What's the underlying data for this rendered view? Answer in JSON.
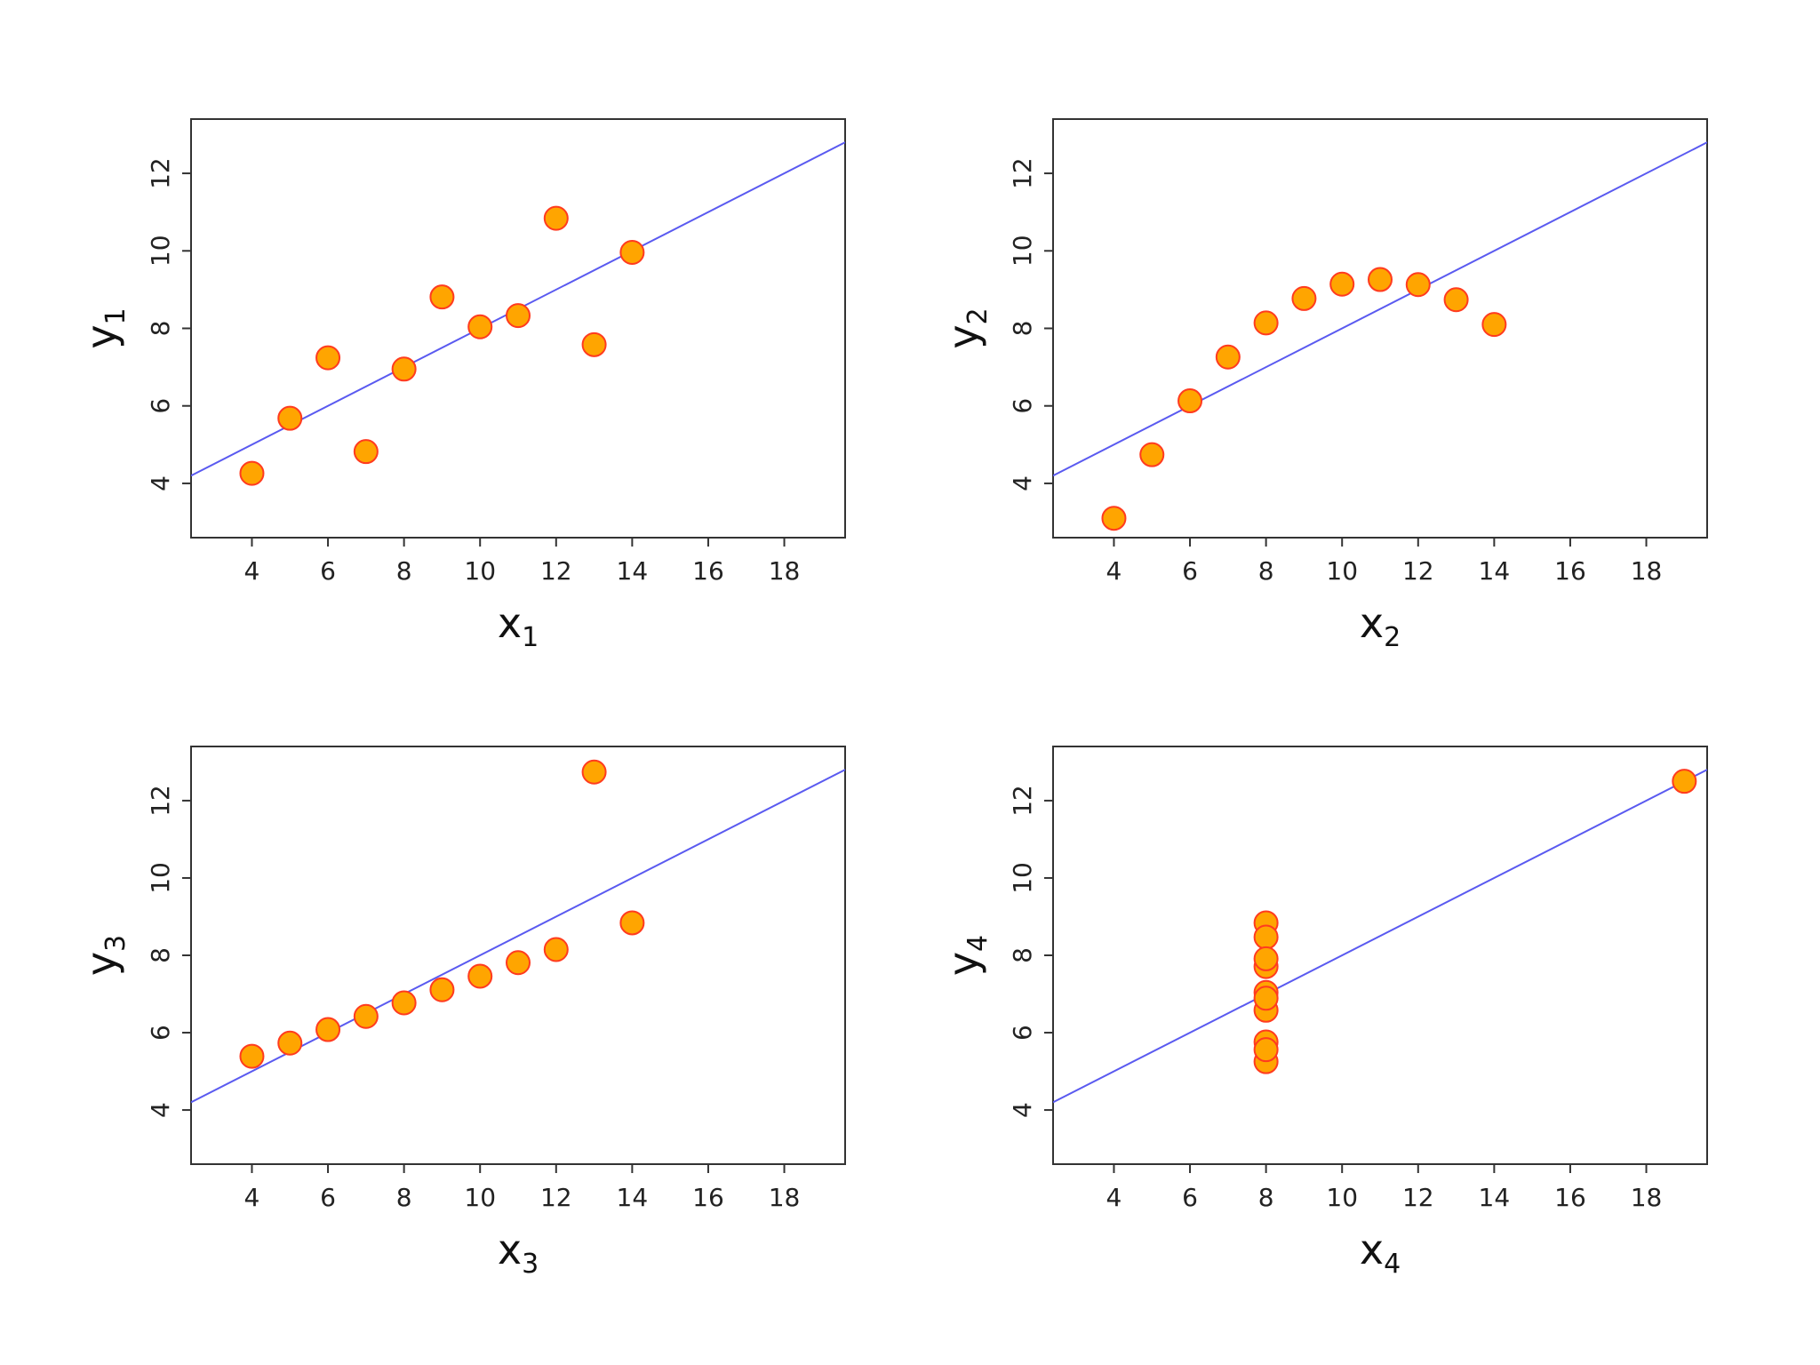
{
  "colors": {
    "point_fill": "#ffa500",
    "point_stroke": "#ff3b1f",
    "fit_line": "#5a5af0",
    "frame": "#333333"
  },
  "chart_data": [
    {
      "type": "scatter",
      "xlabel": "x",
      "xlabel_sub": "1",
      "ylabel": "y",
      "ylabel_sub": "1",
      "xlim": [
        2.4,
        19.6
      ],
      "ylim": [
        2.6,
        13.4
      ],
      "xticks": [
        "4",
        "6",
        "8",
        "10",
        "12",
        "14",
        "16",
        "18"
      ],
      "yticks": [
        "4",
        "6",
        "8",
        "10",
        "12"
      ],
      "x": [
        10,
        8,
        13,
        9,
        11,
        14,
        6,
        4,
        12,
        7,
        5
      ],
      "y": [
        8.04,
        6.95,
        7.58,
        8.81,
        8.33,
        9.96,
        7.24,
        4.26,
        10.84,
        4.82,
        5.68
      ],
      "fit": {
        "intercept": 3.0,
        "slope": 0.5
      }
    },
    {
      "type": "scatter",
      "xlabel": "x",
      "xlabel_sub": "2",
      "ylabel": "y",
      "ylabel_sub": "2",
      "xlim": [
        2.4,
        19.6
      ],
      "ylim": [
        2.6,
        13.4
      ],
      "xticks": [
        "4",
        "6",
        "8",
        "10",
        "12",
        "14",
        "16",
        "18"
      ],
      "yticks": [
        "4",
        "6",
        "8",
        "10",
        "12"
      ],
      "x": [
        10,
        8,
        13,
        9,
        11,
        14,
        6,
        4,
        12,
        7,
        5
      ],
      "y": [
        9.14,
        8.14,
        8.74,
        8.77,
        9.26,
        8.1,
        6.13,
        3.1,
        9.13,
        7.26,
        4.74
      ],
      "fit": {
        "intercept": 3.0,
        "slope": 0.5
      }
    },
    {
      "type": "scatter",
      "xlabel": "x",
      "xlabel_sub": "3",
      "ylabel": "y",
      "ylabel_sub": "3",
      "xlim": [
        2.4,
        19.6
      ],
      "ylim": [
        2.6,
        13.4
      ],
      "xticks": [
        "4",
        "6",
        "8",
        "10",
        "12",
        "14",
        "16",
        "18"
      ],
      "yticks": [
        "4",
        "6",
        "8",
        "10",
        "12"
      ],
      "x": [
        10,
        8,
        13,
        9,
        11,
        14,
        6,
        4,
        12,
        7,
        5
      ],
      "y": [
        7.46,
        6.77,
        12.74,
        7.11,
        7.81,
        8.84,
        6.08,
        5.39,
        8.15,
        6.42,
        5.73
      ],
      "fit": {
        "intercept": 3.0,
        "slope": 0.5
      }
    },
    {
      "type": "scatter",
      "xlabel": "x",
      "xlabel_sub": "4",
      "ylabel": "y",
      "ylabel_sub": "4",
      "xlim": [
        2.4,
        19.6
      ],
      "ylim": [
        2.6,
        13.4
      ],
      "xticks": [
        "4",
        "6",
        "8",
        "10",
        "12",
        "14",
        "16",
        "18"
      ],
      "yticks": [
        "4",
        "6",
        "8",
        "10",
        "12"
      ],
      "x": [
        8,
        8,
        8,
        8,
        8,
        8,
        8,
        19,
        8,
        8,
        8
      ],
      "y": [
        6.58,
        5.76,
        7.71,
        8.84,
        8.47,
        7.04,
        5.25,
        12.5,
        5.56,
        7.91,
        6.89
      ],
      "fit": {
        "intercept": 3.0,
        "slope": 0.5
      }
    }
  ]
}
